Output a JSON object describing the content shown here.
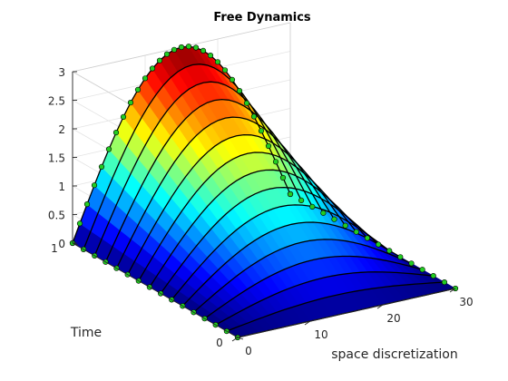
{
  "figure": {
    "title": "Free Dynamics"
  },
  "chart_data": {
    "type": "surface",
    "title": "Free Dynamics",
    "xlabel": "space discretization",
    "ylabel": "Time",
    "zlabel": "",
    "xlim": [
      0,
      30
    ],
    "ylim": [
      0,
      1
    ],
    "zlim": [
      0,
      3
    ],
    "x_ticks": [
      0,
      10,
      20,
      30
    ],
    "y_ticks": [
      0,
      1
    ],
    "z_ticks": [
      0,
      0.5,
      1,
      1.5,
      2,
      2.5,
      3
    ],
    "x_tick_labels": [
      "0",
      "10",
      "20",
      "30"
    ],
    "y_tick_labels": [
      "0",
      "1"
    ],
    "z_tick_labels": [
      "0",
      "0.5",
      "1",
      "1.5",
      "2",
      "2.5",
      "3"
    ],
    "grid": true,
    "colormap": "jet",
    "space_points": 31,
    "time_curves": 16,
    "peak_value": 3,
    "profile": "sine, zero at both ends of the space interval",
    "marker_color": "#22cc22",
    "marker_edge": "#000000",
    "curve_color": "#000000"
  }
}
